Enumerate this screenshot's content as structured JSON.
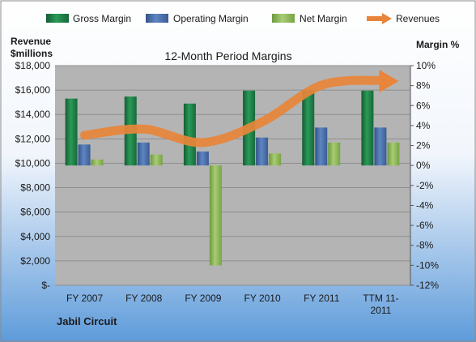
{
  "chart_data": {
    "type": "bar",
    "title": "12-Month Period Margins",
    "company_label": "Jabil Circuit",
    "left_axis_label_line1": "Revenue",
    "left_axis_label_line2": "$millions",
    "right_axis_label": "Margin %",
    "categories": [
      "FY 2007",
      "FY 2008",
      "FY 2009",
      "FY 2010",
      "FY 2011",
      "TTM 11-2011"
    ],
    "category_label_lines": [
      [
        "FY 2007"
      ],
      [
        "FY 2008"
      ],
      [
        "FY 2009"
      ],
      [
        "FY 2010"
      ],
      [
        "FY 2011"
      ],
      [
        "TTM 11-",
        "2011"
      ]
    ],
    "series": [
      {
        "name": "Gross Margin",
        "axis": "right",
        "kind": "bar",
        "color": "#1E7B45",
        "values": [
          6.7,
          6.9,
          6.2,
          7.5,
          7.5,
          7.5
        ]
      },
      {
        "name": "Operating Margin",
        "axis": "right",
        "kind": "bar",
        "color": "#4A6EA8",
        "values": [
          2.1,
          2.3,
          1.4,
          2.8,
          3.8,
          3.8
        ]
      },
      {
        "name": "Net Margin",
        "axis": "right",
        "kind": "bar",
        "color": "#8DB85A",
        "values": [
          0.6,
          1.1,
          -10.0,
          1.2,
          2.3,
          2.3
        ]
      },
      {
        "name": "Revenues",
        "axis": "left",
        "kind": "line",
        "color": "#E8853A",
        "values": [
          12300,
          12800,
          11700,
          13400,
          16400,
          16800
        ]
      }
    ],
    "y_left": {
      "min": 0,
      "max": 18000,
      "step": 2000,
      "tick_labels": [
        "$-",
        "$2,000",
        "$4,000",
        "$6,000",
        "$8,000",
        "$10,000",
        "$12,000",
        "$14,000",
        "$16,000",
        "$18,000"
      ]
    },
    "y_right": {
      "min": -12,
      "max": 10,
      "step": 2,
      "tick_labels": [
        "-12%",
        "-10%",
        "-8%",
        "-6%",
        "-4%",
        "-2%",
        "0%",
        "2%",
        "4%",
        "6%",
        "8%",
        "10%"
      ]
    },
    "legend_position": "top",
    "grid": true,
    "colors": {
      "plot_background": "#B4B4B4",
      "page_top": "#FFFFFF",
      "page_bottom": "#5E9BDA",
      "gridline": "#8E8E8E"
    }
  }
}
